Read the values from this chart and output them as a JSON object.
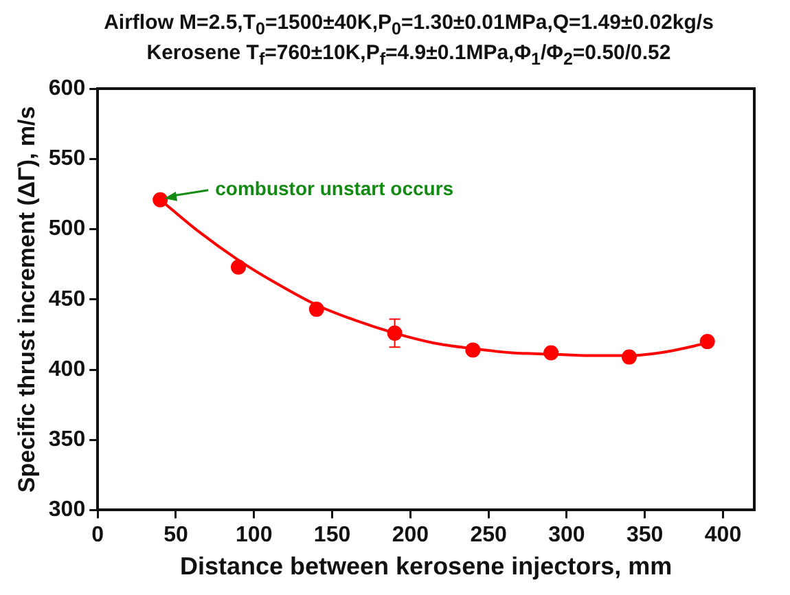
{
  "chart_data": {
    "type": "scatter",
    "title": "Airflow M=2.5,T$_{0}$=1500±40K,P$_{0}$=1.30±0.01MPa,Q=1.49±0.02kg/s",
    "subtitle": "Kerosene T$_{f}$=760±10K,P$_{f}$=4.9±0.1MPa,Φ$_{1}$/Φ$_{2}$=0.50/0.52",
    "xlabel": "Distance between kerosene injectors, mm",
    "ylabel": "Specific thrust increment (ΔΓ), m/s",
    "series": [
      {
        "color": "#ff0000",
        "x": [
          40,
          90,
          140,
          190,
          240,
          290,
          340,
          390
        ],
        "values": [
          521,
          473,
          443,
          426,
          414,
          412,
          409,
          420
        ],
        "errors": [
          null,
          null,
          null,
          10,
          null,
          null,
          null,
          null
        ],
        "marker": "circle"
      },
      {
        "type": "line",
        "color": "#ff0000",
        "x": [
          40,
          65,
          90,
          115,
          140,
          165,
          190,
          215,
          240,
          265,
          290,
          315,
          340,
          365,
          390
        ],
        "values": [
          521,
          498,
          478,
          461,
          446,
          435,
          426,
          419,
          415,
          412,
          411,
          410,
          410,
          413,
          419
        ],
        "marker": "none",
        "line_style": "solid"
      }
    ],
    "annotations": [
      {
        "text": "combustor unstart occurs",
        "x": 40,
        "y": 521
      }
    ],
    "xlim": [
      0,
      420
    ],
    "xticks": [
      0,
      50,
      100,
      150,
      200,
      250,
      300,
      350,
      400
    ],
    "ylim": [
      300,
      600
    ],
    "yticks": [
      300,
      350,
      400,
      450,
      500,
      550,
      600
    ],
    "grid": false,
    "legend": false
  }
}
